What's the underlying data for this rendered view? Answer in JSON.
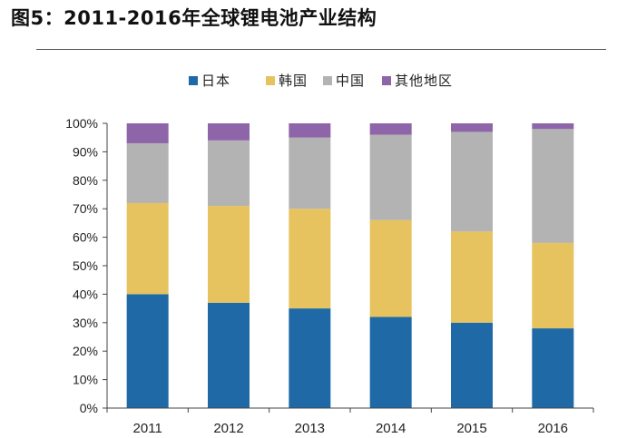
{
  "title": "图5：2011-2016年全球锂电池产业结构",
  "chart_data": {
    "type": "bar",
    "stacked": true,
    "categories": [
      "2011",
      "2012",
      "2013",
      "2014",
      "2015",
      "2016"
    ],
    "series": [
      {
        "name": "日本",
        "color": "#1f6aa6",
        "values": [
          40,
          37,
          35,
          32,
          30,
          28
        ]
      },
      {
        "name": "韩国",
        "color": "#e6c35e",
        "values": [
          32,
          34,
          35,
          34,
          32,
          30
        ]
      },
      {
        "name": "中国",
        "color": "#b3b3b3",
        "values": [
          21,
          23,
          25,
          30,
          35,
          40
        ]
      },
      {
        "name": "其他地区",
        "color": "#8e65a8",
        "values": [
          7,
          6,
          5,
          4,
          3,
          2
        ]
      }
    ],
    "ylim": [
      0,
      100
    ],
    "yticks": [
      "0%",
      "10%",
      "20%",
      "30%",
      "40%",
      "50%",
      "60%",
      "70%",
      "80%",
      "90%",
      "100%"
    ],
    "legend": "top",
    "grid": false
  }
}
